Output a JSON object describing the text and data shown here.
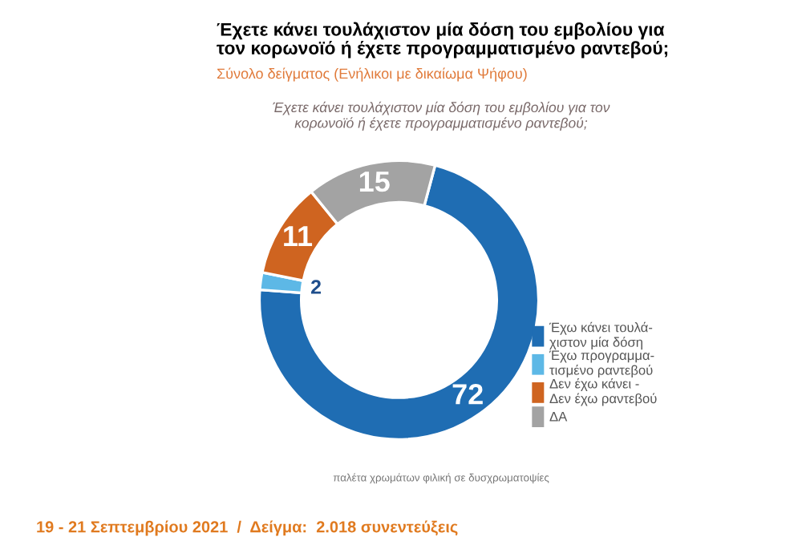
{
  "chart_data": {
    "type": "donut",
    "title": "Έχετε κάνει τουλάχιστον μία δόση του εμβολίου για\nτον κορωνοϊό ή έχετε προγραμματισμένο ραντεβού;",
    "subtitle": "Σύνολο δείγματος (Ενήλικοι με δικαίωμα Ψήφου)",
    "categories": [
      "Έχω κάνει τουλά-\nχιστον μία δόση",
      "Έχω προγραμμα-\nτισμένο ραντεβού",
      "Δεν έχω κάνει -\nΔεν έχω ραντεβού",
      "ΔΑ"
    ],
    "values": [
      72,
      2,
      11,
      15
    ],
    "colors": [
      "#1f6db3",
      "#5db8e6",
      "#cf6420",
      "#a3a3a3"
    ],
    "data_labels": true,
    "legend": "right",
    "annotations": [
      "Έχετε κάνει τουλάχιστον μία δόση του εμβολίου για τον\nκορωνοϊό ή έχετε προγραμματισμένο ραντεβού;",
      "παλέτα χρωμάτων φιλική σε δυσχρωματοψίες",
      "19 - 21 Σεπτεμβρίου 2021  /  Δείγμα:  2.018 συνεντεύξεις"
    ]
  }
}
